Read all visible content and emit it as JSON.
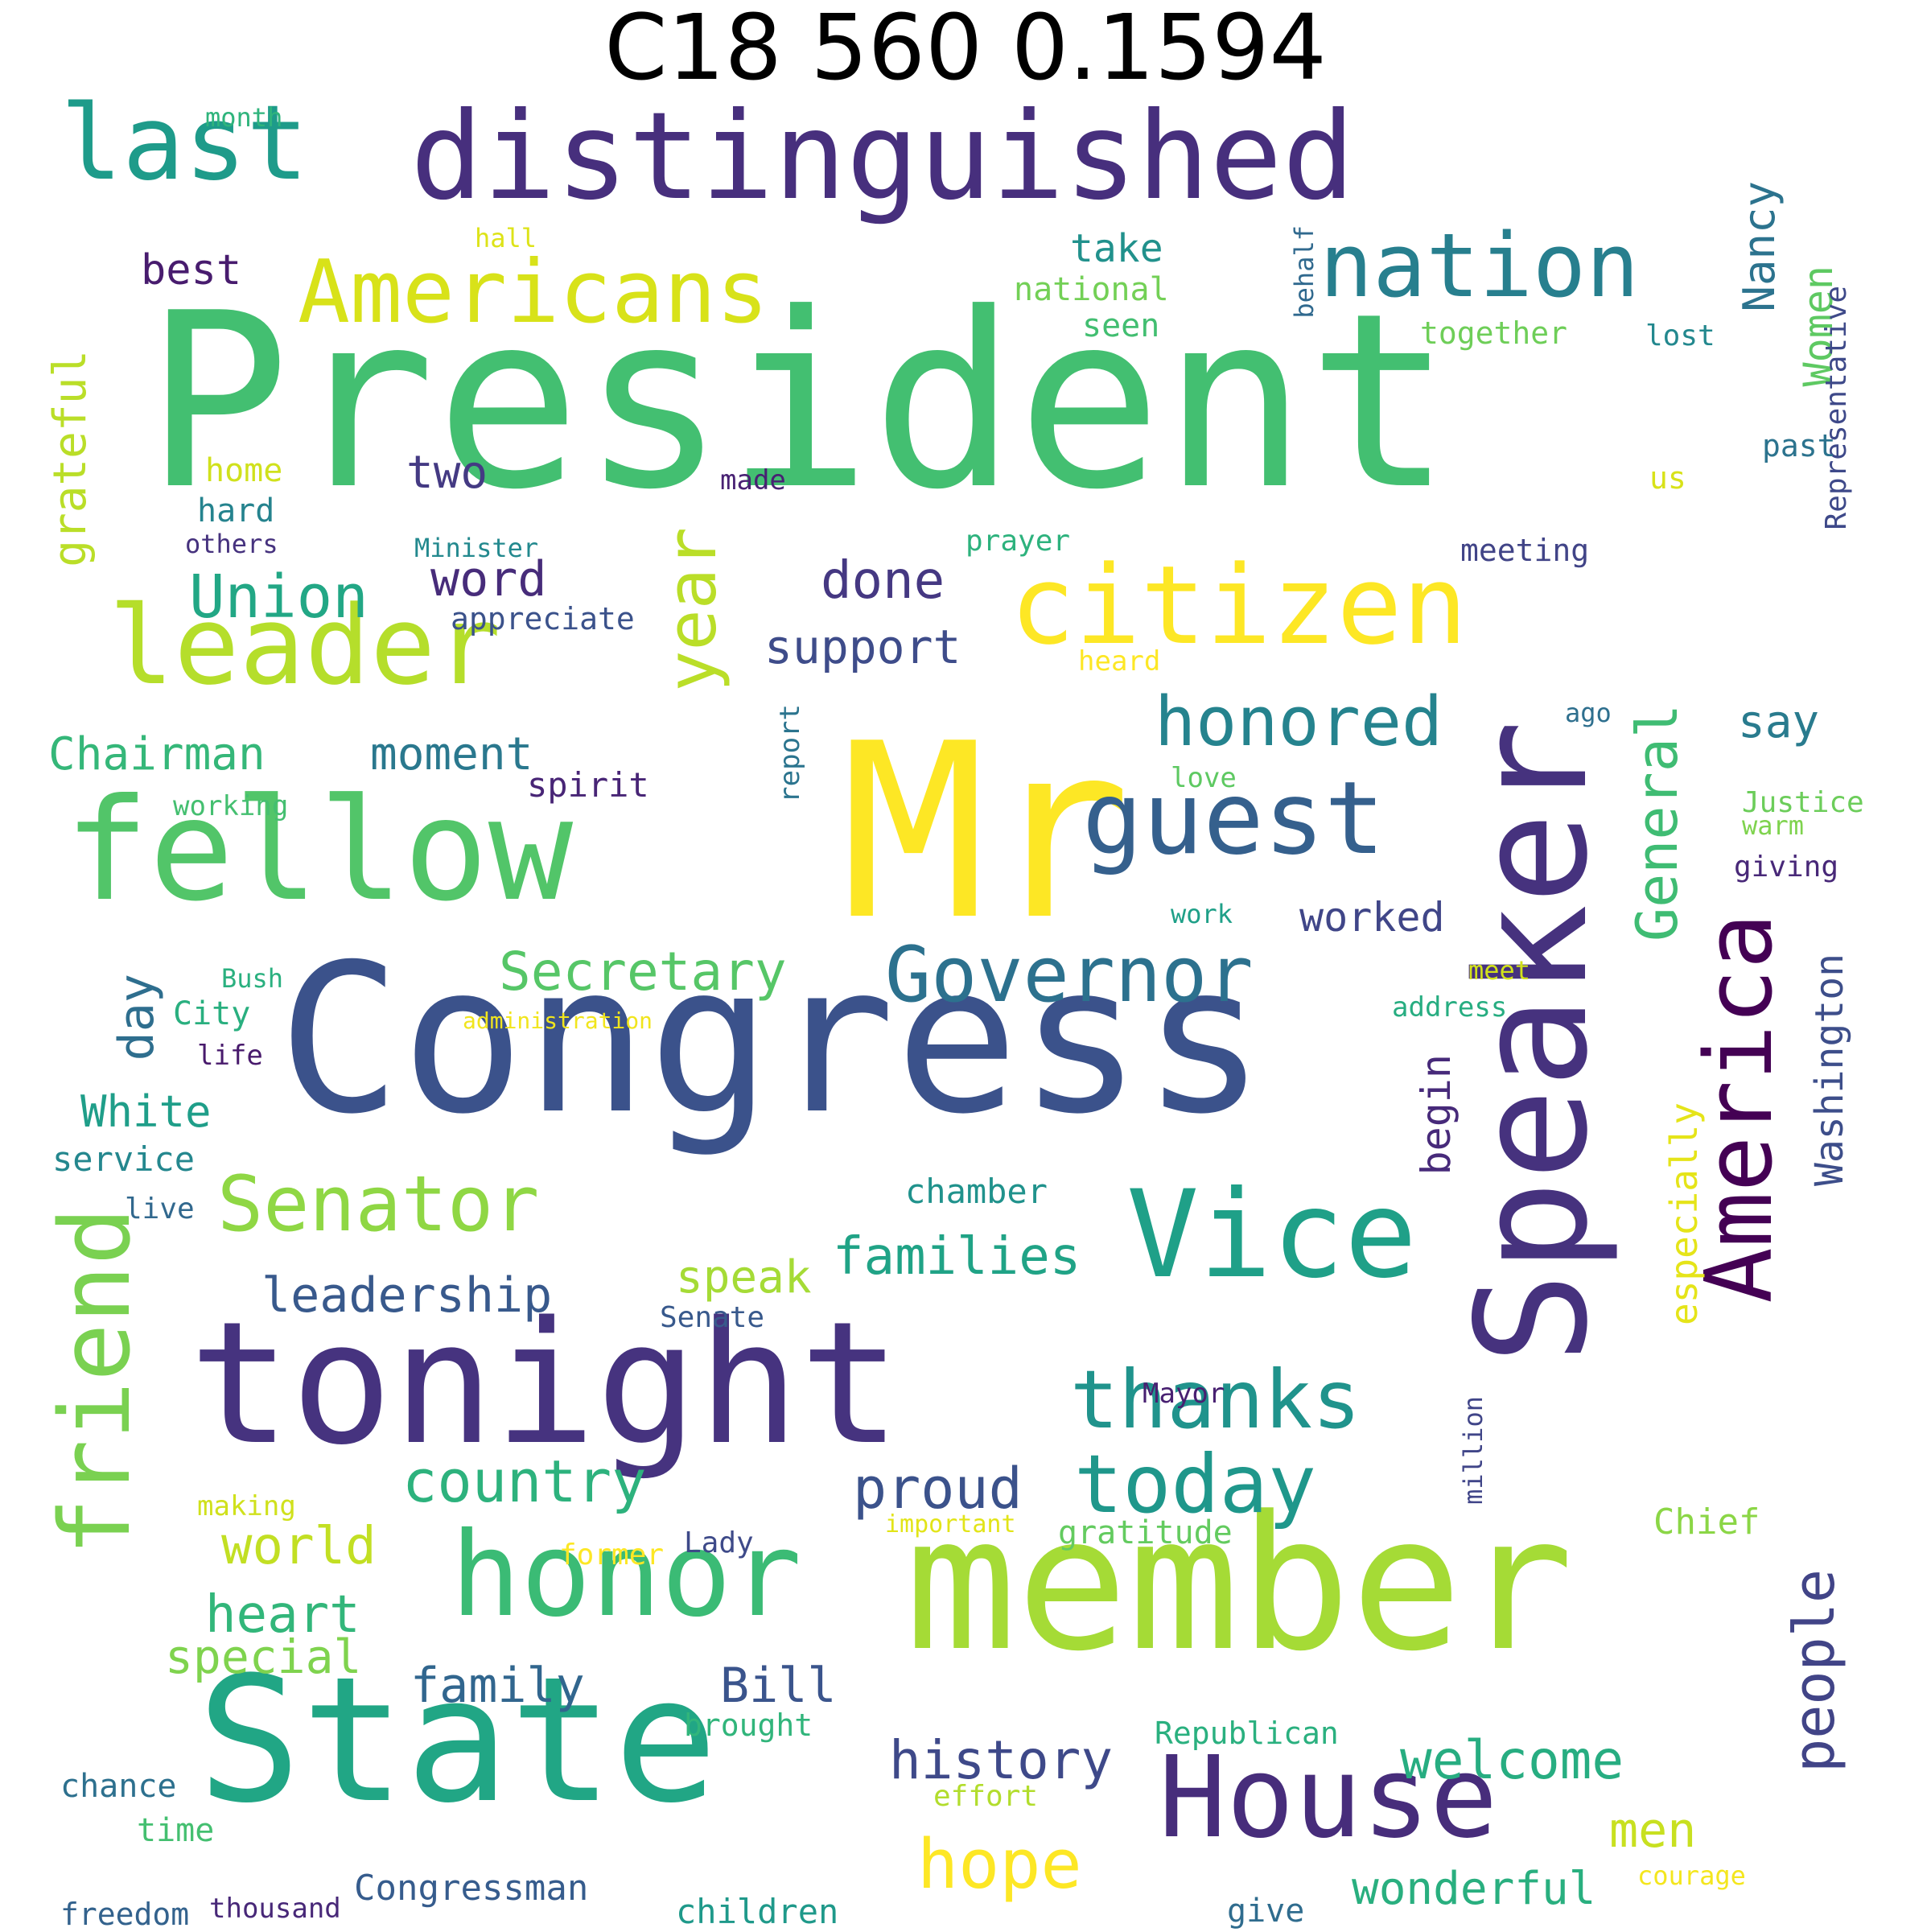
{
  "title": "C18 560 0.1594",
  "palette": [
    "#440154",
    "#472d7b",
    "#3b528b",
    "#2c728e",
    "#21918c",
    "#28ae80",
    "#5ec962",
    "#addc30",
    "#fde725"
  ],
  "words": [
    {
      "text": "President",
      "color": "#43bf71"
    },
    {
      "text": "Mr",
      "color": "#fde725"
    },
    {
      "text": "Congress",
      "color": "#3b528b"
    },
    {
      "text": "member",
      "color": "#a5db36"
    },
    {
      "text": "Speaker",
      "color": "#46327e"
    },
    {
      "text": "tonight",
      "color": "#46337f"
    },
    {
      "text": "State",
      "color": "#21a685"
    },
    {
      "text": "distinguished",
      "color": "#472f7d"
    },
    {
      "text": "fellow",
      "color": "#52c569"
    },
    {
      "text": "citizen",
      "color": "#fde725"
    },
    {
      "text": "Vice",
      "color": "#1fa088"
    },
    {
      "text": "America",
      "color": "#440154"
    },
    {
      "text": "honor",
      "color": "#3bbb75"
    },
    {
      "text": "House",
      "color": "#472d7b"
    },
    {
      "text": "leader",
      "color": "#b5de2b"
    },
    {
      "text": "guest",
      "color": "#35608d"
    },
    {
      "text": "friend",
      "color": "#7ad151"
    },
    {
      "text": "Americans",
      "color": "#d8e219"
    },
    {
      "text": "last",
      "color": "#1e9b8a"
    },
    {
      "text": "nation",
      "color": "#277f8e"
    },
    {
      "text": "Governor",
      "color": "#2c718e"
    },
    {
      "text": "thanks",
      "color": "#20938c"
    },
    {
      "text": "today",
      "color": "#1f978b"
    },
    {
      "text": "Senator",
      "color": "#8fd744"
    },
    {
      "text": "year",
      "color": "#bade28"
    },
    {
      "text": "General",
      "color": "#3fbc73"
    },
    {
      "text": "honored",
      "color": "#25838e"
    },
    {
      "text": "people",
      "color": "#414487"
    },
    {
      "text": "hope",
      "color": "#fde725"
    },
    {
      "text": "country",
      "color": "#2db27d"
    },
    {
      "text": "welcome",
      "color": "#27ad81"
    },
    {
      "text": "Union",
      "color": "#22a785"
    },
    {
      "text": "history",
      "color": "#3e4989"
    },
    {
      "text": "proud",
      "color": "#3b528b"
    },
    {
      "text": "heart",
      "color": "#32b67a"
    },
    {
      "text": "world",
      "color": "#c2df23"
    },
    {
      "text": "Secretary",
      "color": "#56c667"
    },
    {
      "text": "families",
      "color": "#20a386"
    },
    {
      "text": "leadership",
      "color": "#38598c"
    },
    {
      "text": "special",
      "color": "#7fd34e"
    },
    {
      "text": "family",
      "color": "#31668e"
    },
    {
      "text": "Bill",
      "color": "#3a548c"
    },
    {
      "text": "speak",
      "color": "#a5db36"
    },
    {
      "text": "men",
      "color": "#c8e020"
    },
    {
      "text": "wonderful",
      "color": "#29af7f"
    },
    {
      "text": "Washington",
      "color": "#3d4e8a"
    },
    {
      "text": "especially",
      "color": "#e5e419"
    },
    {
      "text": "Women",
      "color": "#5ec962"
    },
    {
      "text": "Nancy",
      "color": "#2c738e"
    },
    {
      "text": "grateful",
      "color": "#bade28"
    },
    {
      "text": "Chairman",
      "color": "#35b779"
    },
    {
      "text": "moment",
      "color": "#2a788e"
    },
    {
      "text": "done",
      "color": "#453882"
    },
    {
      "text": "support",
      "color": "#3e4c8a"
    },
    {
      "text": "word",
      "color": "#472c7a"
    },
    {
      "text": "two",
      "color": "#443a83"
    },
    {
      "text": "day",
      "color": "#2e6e8e"
    },
    {
      "text": "White",
      "color": "#1f9e89"
    },
    {
      "text": "worked",
      "color": "#404688"
    },
    {
      "text": "say",
      "color": "#297b8e"
    },
    {
      "text": "begin",
      "color": "#472a7a"
    },
    {
      "text": "best",
      "color": "#481c6e"
    },
    {
      "text": "take",
      "color": "#21918c"
    },
    {
      "text": "Representative",
      "color": "#3e4989"
    },
    {
      "text": "Congressman",
      "color": "#365c8d"
    },
    {
      "text": "children",
      "color": "#1f998a"
    },
    {
      "text": "chamber",
      "color": "#20928c"
    },
    {
      "text": "gratitude",
      "color": "#63cb5f"
    },
    {
      "text": "Chief",
      "color": "#8bd646"
    },
    {
      "text": "service",
      "color": "#24878e"
    },
    {
      "text": "spirit",
      "color": "#482576"
    },
    {
      "text": "national",
      "color": "#73d056"
    },
    {
      "text": "seen",
      "color": "#42be71"
    },
    {
      "text": "together",
      "color": "#6ece58"
    },
    {
      "text": "lost",
      "color": "#23888e"
    },
    {
      "text": "behalf",
      "color": "#30698e"
    },
    {
      "text": "home",
      "color": "#d0e11c"
    },
    {
      "text": "hard",
      "color": "#25838e"
    },
    {
      "text": "others",
      "color": "#46327e"
    },
    {
      "text": "past",
      "color": "#2c738e"
    },
    {
      "text": "us",
      "color": "#d8e219"
    },
    {
      "text": "made",
      "color": "#482173"
    },
    {
      "text": "prayer",
      "color": "#2db27d"
    },
    {
      "text": "meeting",
      "color": "#414487"
    },
    {
      "text": "Minister",
      "color": "#23898e"
    },
    {
      "text": "appreciate",
      "color": "#3b528b"
    },
    {
      "text": "heard",
      "color": "#fde725"
    },
    {
      "text": "month",
      "color": "#2fb47c"
    },
    {
      "text": "hall",
      "color": "#dde318"
    },
    {
      "text": "ago",
      "color": "#2e6f8e"
    },
    {
      "text": "report",
      "color": "#2b748e"
    },
    {
      "text": "love",
      "color": "#5ec962"
    },
    {
      "text": "working",
      "color": "#44bf70"
    },
    {
      "text": "Justice",
      "color": "#6ccd5a"
    },
    {
      "text": "warm",
      "color": "#7fd34e"
    },
    {
      "text": "giving",
      "color": "#482878"
    },
    {
      "text": "work",
      "color": "#1fa088"
    },
    {
      "text": "meet",
      "color": "#d2e21b"
    },
    {
      "text": "Bush",
      "color": "#2ab07f"
    },
    {
      "text": "address",
      "color": "#27ad81"
    },
    {
      "text": "City",
      "color": "#29af7f"
    },
    {
      "text": "administration",
      "color": "#f1e51d"
    },
    {
      "text": "life",
      "color": "#481a6c"
    },
    {
      "text": "live",
      "color": "#31688e"
    },
    {
      "text": "Senate",
      "color": "#38598c"
    },
    {
      "text": "Mayor",
      "color": "#482071"
    },
    {
      "text": "million",
      "color": "#404588"
    },
    {
      "text": "making",
      "color": "#d0e11c"
    },
    {
      "text": "important",
      "color": "#e2e418"
    },
    {
      "text": "former",
      "color": "#fde725"
    },
    {
      "text": "Lady",
      "color": "#3e4a89"
    },
    {
      "text": "brought",
      "color": "#31b57b"
    },
    {
      "text": "Republican",
      "color": "#2ab07f"
    },
    {
      "text": "chance",
      "color": "#2d708e"
    },
    {
      "text": "effort",
      "color": "#b2dd2d"
    },
    {
      "text": "time",
      "color": "#44bf70"
    },
    {
      "text": "courage",
      "color": "#f4e61e"
    },
    {
      "text": "freedom",
      "color": "#33628d"
    },
    {
      "text": "thousand",
      "color": "#482878"
    },
    {
      "text": "give",
      "color": "#2f6c8e"
    }
  ]
}
